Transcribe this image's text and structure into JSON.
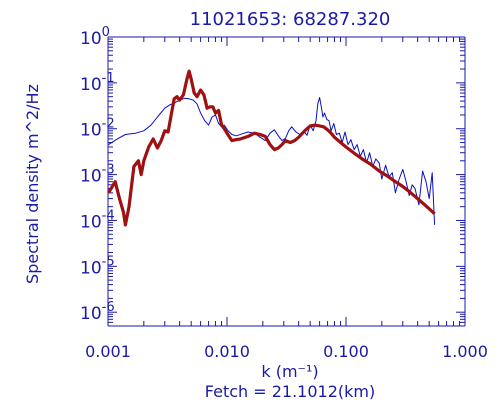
{
  "chart_data": {
    "type": "line",
    "title": "11021653: 68287.320",
    "xlabel": "k (m⁻¹)",
    "ylabel": "Spectral density m^2/Hz",
    "footnote": "Fetch = 21.1012(km)",
    "x_scale": "log",
    "y_scale": "log",
    "xlim": [
      0.001,
      1.0
    ],
    "ylim": [
      5e-07,
      1.0
    ],
    "x_ticks": [
      {
        "value": 0.001,
        "label": "0.001"
      },
      {
        "value": 0.01,
        "label": "0.010"
      },
      {
        "value": 0.1,
        "label": "0.100"
      },
      {
        "value": 1.0,
        "label": "1.000"
      }
    ],
    "y_ticks": [
      {
        "value": 1,
        "base": "10",
        "exp": "0"
      },
      {
        "value": 0.1,
        "base": "10",
        "exp": "-1"
      },
      {
        "value": 0.01,
        "base": "10",
        "exp": "-2"
      },
      {
        "value": 0.001,
        "base": "10",
        "exp": "-3"
      },
      {
        "value": 0.0001,
        "base": "10",
        "exp": "-4"
      },
      {
        "value": 1e-05,
        "base": "10",
        "exp": "-5"
      },
      {
        "value": 1e-06,
        "base": "10",
        "exp": "-6"
      }
    ],
    "grid": false,
    "colors": {
      "axis": "#1a1aa6",
      "measured": "#0a10c0",
      "model": "#a01010"
    },
    "series": [
      {
        "style": "thin-blue-noisy",
        "x": [
          0.00101,
          0.0012,
          0.0014,
          0.0017,
          0.002,
          0.0023,
          0.0026,
          0.003,
          0.0033,
          0.0036,
          0.004,
          0.0044,
          0.0048,
          0.0052,
          0.0056,
          0.006,
          0.0065,
          0.007,
          0.0075,
          0.008,
          0.0085,
          0.009,
          0.0095,
          0.0102,
          0.011,
          0.012,
          0.0135,
          0.015,
          0.017,
          0.019,
          0.021,
          0.023,
          0.025,
          0.027,
          0.029,
          0.031,
          0.033,
          0.035,
          0.038,
          0.041,
          0.044,
          0.047,
          0.05,
          0.053,
          0.056,
          0.058,
          0.06,
          0.062,
          0.064,
          0.066,
          0.069,
          0.072,
          0.075,
          0.079,
          0.083,
          0.088,
          0.093,
          0.098,
          0.104,
          0.11,
          0.117,
          0.124,
          0.132,
          0.14,
          0.149,
          0.158,
          0.168,
          0.178,
          0.19,
          0.2,
          0.215,
          0.23,
          0.245,
          0.26,
          0.28,
          0.3,
          0.32,
          0.34,
          0.36,
          0.38,
          0.41,
          0.44,
          0.47,
          0.5,
          0.53,
          0.555
        ],
        "y": [
          0.0045,
          0.006,
          0.0075,
          0.008,
          0.009,
          0.012,
          0.018,
          0.028,
          0.033,
          0.036,
          0.042,
          0.046,
          0.045,
          0.042,
          0.035,
          0.022,
          0.015,
          0.012,
          0.018,
          0.02,
          0.013,
          0.011,
          0.012,
          0.009,
          0.0075,
          0.007,
          0.0078,
          0.0085,
          0.008,
          0.0065,
          0.0055,
          0.008,
          0.0095,
          0.007,
          0.0055,
          0.0062,
          0.009,
          0.011,
          0.0085,
          0.0075,
          0.009,
          0.0072,
          0.012,
          0.009,
          0.015,
          0.035,
          0.048,
          0.03,
          0.018,
          0.022,
          0.016,
          0.015,
          0.009,
          0.013,
          0.0075,
          0.008,
          0.005,
          0.0085,
          0.0045,
          0.0058,
          0.0035,
          0.0045,
          0.0025,
          0.0035,
          0.0018,
          0.003,
          0.0015,
          0.0022,
          0.0018,
          0.0008,
          0.0016,
          0.0009,
          0.0011,
          0.0004,
          0.0008,
          0.0013,
          0.0007,
          0.00035,
          0.0006,
          0.0005,
          0.00022,
          0.0012,
          0.0007,
          0.0003,
          0.0011,
          8e-05
        ]
      },
      {
        "style": "thick-red-smooth",
        "x": [
          0.00101,
          0.00115,
          0.00125,
          0.00135,
          0.0014,
          0.0015,
          0.00165,
          0.0018,
          0.0019,
          0.002,
          0.0022,
          0.0024,
          0.0026,
          0.0028,
          0.003,
          0.0032,
          0.0034,
          0.0036,
          0.0038,
          0.004,
          0.0043,
          0.0046,
          0.0048,
          0.005,
          0.0053,
          0.0056,
          0.006,
          0.0064,
          0.0068,
          0.0072,
          0.0076,
          0.008,
          0.0085,
          0.009,
          0.0095,
          0.01,
          0.011,
          0.012,
          0.013,
          0.015,
          0.017,
          0.019,
          0.021,
          0.023,
          0.025,
          0.027,
          0.029,
          0.031,
          0.034,
          0.037,
          0.04,
          0.045,
          0.05,
          0.055,
          0.06,
          0.065,
          0.07,
          0.075,
          0.08,
          0.09,
          0.1,
          0.12,
          0.14,
          0.16,
          0.19,
          0.22,
          0.26,
          0.3,
          0.35,
          0.4,
          0.45,
          0.5,
          0.555
        ],
        "y": [
          0.0004,
          0.0007,
          0.0003,
          0.00015,
          8e-05,
          0.0002,
          0.0015,
          0.002,
          0.001,
          0.002,
          0.004,
          0.006,
          0.0038,
          0.0055,
          0.009,
          0.0085,
          0.02,
          0.045,
          0.05,
          0.042,
          0.055,
          0.12,
          0.18,
          0.12,
          0.06,
          0.05,
          0.07,
          0.055,
          0.028,
          0.03,
          0.03,
          0.022,
          0.025,
          0.012,
          0.01,
          0.008,
          0.0055,
          0.0058,
          0.006,
          0.0068,
          0.008,
          0.0075,
          0.0068,
          0.0045,
          0.0035,
          0.0038,
          0.0045,
          0.0055,
          0.005,
          0.0055,
          0.0065,
          0.009,
          0.0115,
          0.012,
          0.0115,
          0.011,
          0.0095,
          0.008,
          0.0065,
          0.005,
          0.004,
          0.0028,
          0.0021,
          0.0017,
          0.0012,
          0.00095,
          0.0007,
          0.00055,
          0.0004,
          0.0003,
          0.00023,
          0.00018,
          0.00014
        ]
      }
    ]
  }
}
